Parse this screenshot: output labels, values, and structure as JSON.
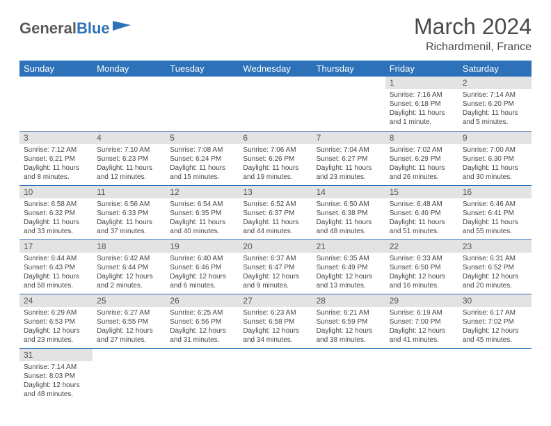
{
  "logo": {
    "text1": "General",
    "text2": "Blue"
  },
  "title": "March 2024",
  "location": "Richardmenil, France",
  "colors": {
    "header_bg": "#2d72b8",
    "header_text": "#ffffff",
    "daynum_bg": "#e3e3e3",
    "row_border": "#2d72b8",
    "page_bg": "#ffffff",
    "text": "#333333"
  },
  "typography": {
    "title_fontsize": 32,
    "location_fontsize": 16,
    "header_cell_fontsize": 13,
    "daynum_fontsize": 12,
    "body_fontsize": 10
  },
  "weekdays": [
    "Sunday",
    "Monday",
    "Tuesday",
    "Wednesday",
    "Thursday",
    "Friday",
    "Saturday"
  ],
  "weeks": [
    [
      null,
      null,
      null,
      null,
      null,
      {
        "n": "1",
        "sr": "Sunrise: 7:16 AM",
        "ss": "Sunset: 6:18 PM",
        "dl": "Daylight: 11 hours and 1 minute."
      },
      {
        "n": "2",
        "sr": "Sunrise: 7:14 AM",
        "ss": "Sunset: 6:20 PM",
        "dl": "Daylight: 11 hours and 5 minutes."
      }
    ],
    [
      {
        "n": "3",
        "sr": "Sunrise: 7:12 AM",
        "ss": "Sunset: 6:21 PM",
        "dl": "Daylight: 11 hours and 8 minutes."
      },
      {
        "n": "4",
        "sr": "Sunrise: 7:10 AM",
        "ss": "Sunset: 6:23 PM",
        "dl": "Daylight: 11 hours and 12 minutes."
      },
      {
        "n": "5",
        "sr": "Sunrise: 7:08 AM",
        "ss": "Sunset: 6:24 PM",
        "dl": "Daylight: 11 hours and 15 minutes."
      },
      {
        "n": "6",
        "sr": "Sunrise: 7:06 AM",
        "ss": "Sunset: 6:26 PM",
        "dl": "Daylight: 11 hours and 19 minutes."
      },
      {
        "n": "7",
        "sr": "Sunrise: 7:04 AM",
        "ss": "Sunset: 6:27 PM",
        "dl": "Daylight: 11 hours and 23 minutes."
      },
      {
        "n": "8",
        "sr": "Sunrise: 7:02 AM",
        "ss": "Sunset: 6:29 PM",
        "dl": "Daylight: 11 hours and 26 minutes."
      },
      {
        "n": "9",
        "sr": "Sunrise: 7:00 AM",
        "ss": "Sunset: 6:30 PM",
        "dl": "Daylight: 11 hours and 30 minutes."
      }
    ],
    [
      {
        "n": "10",
        "sr": "Sunrise: 6:58 AM",
        "ss": "Sunset: 6:32 PM",
        "dl": "Daylight: 11 hours and 33 minutes."
      },
      {
        "n": "11",
        "sr": "Sunrise: 6:56 AM",
        "ss": "Sunset: 6:33 PM",
        "dl": "Daylight: 11 hours and 37 minutes."
      },
      {
        "n": "12",
        "sr": "Sunrise: 6:54 AM",
        "ss": "Sunset: 6:35 PM",
        "dl": "Daylight: 11 hours and 40 minutes."
      },
      {
        "n": "13",
        "sr": "Sunrise: 6:52 AM",
        "ss": "Sunset: 6:37 PM",
        "dl": "Daylight: 11 hours and 44 minutes."
      },
      {
        "n": "14",
        "sr": "Sunrise: 6:50 AM",
        "ss": "Sunset: 6:38 PM",
        "dl": "Daylight: 11 hours and 48 minutes."
      },
      {
        "n": "15",
        "sr": "Sunrise: 6:48 AM",
        "ss": "Sunset: 6:40 PM",
        "dl": "Daylight: 11 hours and 51 minutes."
      },
      {
        "n": "16",
        "sr": "Sunrise: 6:46 AM",
        "ss": "Sunset: 6:41 PM",
        "dl": "Daylight: 11 hours and 55 minutes."
      }
    ],
    [
      {
        "n": "17",
        "sr": "Sunrise: 6:44 AM",
        "ss": "Sunset: 6:43 PM",
        "dl": "Daylight: 11 hours and 58 minutes."
      },
      {
        "n": "18",
        "sr": "Sunrise: 6:42 AM",
        "ss": "Sunset: 6:44 PM",
        "dl": "Daylight: 12 hours and 2 minutes."
      },
      {
        "n": "19",
        "sr": "Sunrise: 6:40 AM",
        "ss": "Sunset: 6:46 PM",
        "dl": "Daylight: 12 hours and 6 minutes."
      },
      {
        "n": "20",
        "sr": "Sunrise: 6:37 AM",
        "ss": "Sunset: 6:47 PM",
        "dl": "Daylight: 12 hours and 9 minutes."
      },
      {
        "n": "21",
        "sr": "Sunrise: 6:35 AM",
        "ss": "Sunset: 6:49 PM",
        "dl": "Daylight: 12 hours and 13 minutes."
      },
      {
        "n": "22",
        "sr": "Sunrise: 6:33 AM",
        "ss": "Sunset: 6:50 PM",
        "dl": "Daylight: 12 hours and 16 minutes."
      },
      {
        "n": "23",
        "sr": "Sunrise: 6:31 AM",
        "ss": "Sunset: 6:52 PM",
        "dl": "Daylight: 12 hours and 20 minutes."
      }
    ],
    [
      {
        "n": "24",
        "sr": "Sunrise: 6:29 AM",
        "ss": "Sunset: 6:53 PM",
        "dl": "Daylight: 12 hours and 23 minutes."
      },
      {
        "n": "25",
        "sr": "Sunrise: 6:27 AM",
        "ss": "Sunset: 6:55 PM",
        "dl": "Daylight: 12 hours and 27 minutes."
      },
      {
        "n": "26",
        "sr": "Sunrise: 6:25 AM",
        "ss": "Sunset: 6:56 PM",
        "dl": "Daylight: 12 hours and 31 minutes."
      },
      {
        "n": "27",
        "sr": "Sunrise: 6:23 AM",
        "ss": "Sunset: 6:58 PM",
        "dl": "Daylight: 12 hours and 34 minutes."
      },
      {
        "n": "28",
        "sr": "Sunrise: 6:21 AM",
        "ss": "Sunset: 6:59 PM",
        "dl": "Daylight: 12 hours and 38 minutes."
      },
      {
        "n": "29",
        "sr": "Sunrise: 6:19 AM",
        "ss": "Sunset: 7:00 PM",
        "dl": "Daylight: 12 hours and 41 minutes."
      },
      {
        "n": "30",
        "sr": "Sunrise: 6:17 AM",
        "ss": "Sunset: 7:02 PM",
        "dl": "Daylight: 12 hours and 45 minutes."
      }
    ],
    [
      {
        "n": "31",
        "sr": "Sunrise: 7:14 AM",
        "ss": "Sunset: 8:03 PM",
        "dl": "Daylight: 12 hours and 48 minutes."
      },
      null,
      null,
      null,
      null,
      null,
      null
    ]
  ]
}
